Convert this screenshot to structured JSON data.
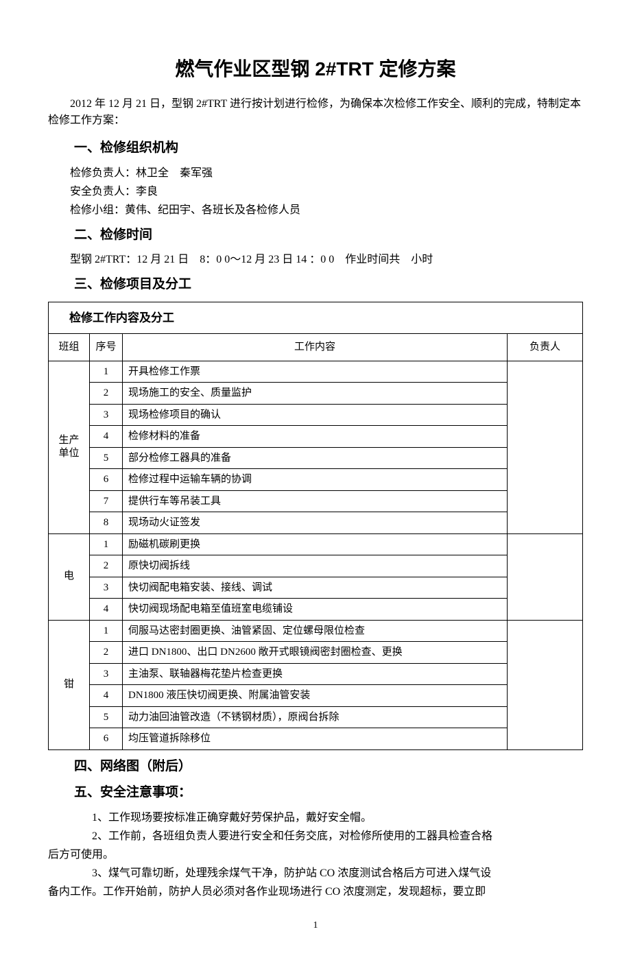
{
  "title": "燃气作业区型钢 2#TRT 定修方案",
  "intro": "2012 年 12 月 21 日，型钢 2#TRT 进行按计划进行检修，为确保本次检修工作安全、顺利的完成，特制定本检修工作方案：",
  "sec1": {
    "heading": "一、检修组织机构",
    "line1": "检修负责人：林卫全　秦军强",
    "line2": "安全负责人：李良",
    "line3": "检修小组：黄伟、纪田宇、各班长及各检修人员"
  },
  "sec2": {
    "heading": "二、检修时间",
    "line1": "型钢 2#TRT：12 月 21 日　8：0 0～12 月 23 日 14 ：0  0　作业时间共　小时"
  },
  "sec3": {
    "heading": "三、检修项目及分工"
  },
  "table": {
    "caption": "检修工作内容及分工",
    "headers": {
      "team": "班组",
      "no": "序号",
      "work": "工作内容",
      "resp": "负责人"
    },
    "groups": [
      {
        "team": "生产单位",
        "team_lines": [
          "生产",
          "单位"
        ],
        "rows": [
          {
            "no": "1",
            "work": "开具检修工作票"
          },
          {
            "no": "2",
            "work": "现场施工的安全、质量监护"
          },
          {
            "no": "3",
            "work": "现场检修项目的确认"
          },
          {
            "no": "4",
            "work": "检修材料的准备"
          },
          {
            "no": "5",
            "work": "部分检修工器具的准备"
          },
          {
            "no": "6",
            "work": "检修过程中运输车辆的协调"
          },
          {
            "no": "7",
            "work": "提供行车等吊装工具"
          },
          {
            "no": "8",
            "work": "现场动火证签发"
          }
        ]
      },
      {
        "team": "电",
        "team_lines": [
          "电"
        ],
        "rows": [
          {
            "no": "1",
            "work": "励磁机碳刷更换"
          },
          {
            "no": "2",
            "work": "原快切阀拆线"
          },
          {
            "no": "3",
            "work": "快切阀配电箱安装、接线、调试"
          },
          {
            "no": "4",
            "work": "快切阀现场配电箱至值班室电缆铺设"
          }
        ]
      },
      {
        "team": "钳",
        "team_lines": [
          "钳"
        ],
        "rows": [
          {
            "no": "1",
            "work": "伺服马达密封圈更换、油管紧固、定位螺母限位检查"
          },
          {
            "no": "2",
            "work": "进口 DN1800、出口 DN2600 敞开式眼镜阀密封圈检查、更换"
          },
          {
            "no": "3",
            "work": "主油泵、联轴器梅花垫片检查更换"
          },
          {
            "no": "4",
            "work": "DN1800 液压快切阀更换、附属油管安装"
          },
          {
            "no": "5",
            "work": "动力油回油管改造（不锈钢材质），原阀台拆除"
          },
          {
            "no": "6",
            "work": "均压管道拆除移位"
          }
        ]
      }
    ]
  },
  "sec4": {
    "heading": "四、网络图（附后）"
  },
  "sec5": {
    "heading": "五、安全注意事项：",
    "n1": "　　1、工作现场要按标准正确穿戴好劳保护品，戴好安全帽。",
    "n2a": "　　2、工作前，各班组负责人要进行安全和任务交底，对检修所使用的工器具检查合格",
    "n2b": "后方可使用。",
    "n3a": "　　3、煤气可靠切断，处理残余煤气干净，防护站 CO 浓度测试合格后方可进入煤气设",
    "n3b": "备内工作。工作开始前，防护人员必须对各作业现场进行 CO 浓度测定，发现超标，要立即"
  },
  "pagenum": "1"
}
